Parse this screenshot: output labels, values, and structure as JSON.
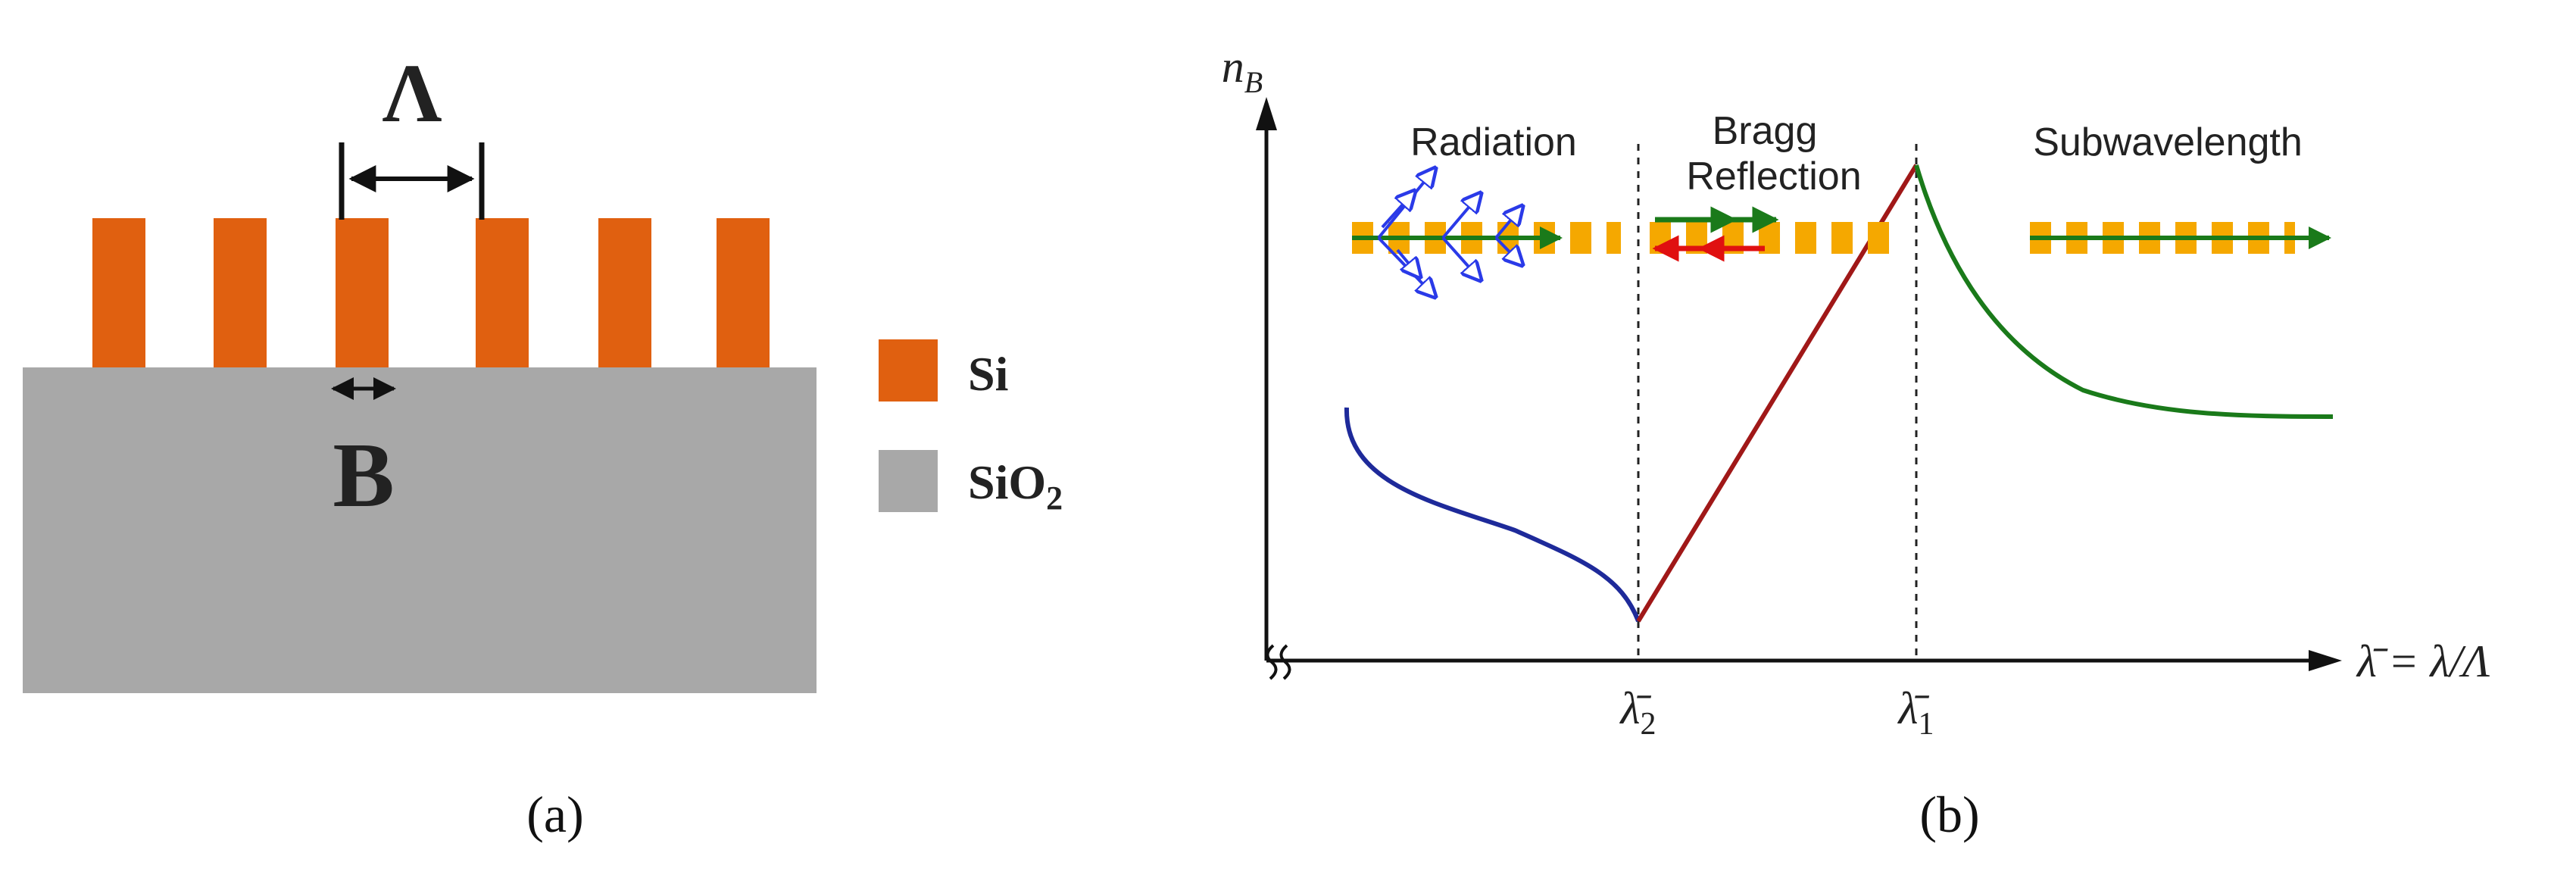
{
  "panel_a": {
    "period_label": "Λ",
    "width_label": "B",
    "legend": [
      {
        "label": "Si",
        "color": "#E06010"
      },
      {
        "label": "SiO2",
        "color": "#A8A8A8"
      }
    ],
    "caption": "(a)"
  },
  "panel_b": {
    "y_axis_label": "n_B",
    "x_axis_label": "λ̄ = λ/Λ",
    "tick_lambda2": "λ̄2",
    "tick_lambda1": "λ̄1",
    "regions": {
      "radiation": "Radiation",
      "bragg_line1": "Bragg",
      "bragg_line2": "Reflection",
      "subwavelength": "Subwavelength"
    },
    "colors": {
      "radiation_curve": "#1E2A9A",
      "bragg_curve": "#A01818",
      "subwavelength_curve": "#1A7A1A",
      "grating": "#F5A800",
      "forward_arrow": "#1A7A1A",
      "reflected_arrow": "#E01010",
      "radiated_arrows": "#2A3AE8"
    },
    "caption": "(b)"
  }
}
